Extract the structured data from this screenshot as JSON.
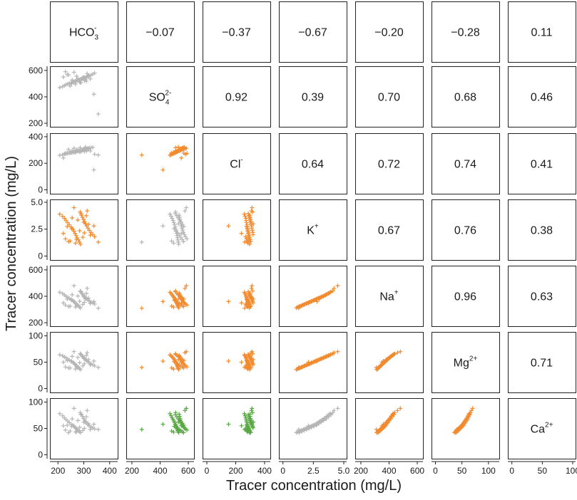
{
  "chart_data": {
    "type": "scatter",
    "xlabel": "Tracer concentration (mg/L)",
    "ylabel": "Tracer concentration (mg/L)",
    "variables": [
      {
        "key": "HCO3",
        "label": "HCO",
        "sub": "3",
        "sup": "-",
        "range": [
          180,
          420
        ],
        "ticks": [
          200,
          300,
          400
        ],
        "tick_labels": [
          "200",
          "300",
          "400"
        ]
      },
      {
        "key": "SO4",
        "label": "SO",
        "sub": "4",
        "sup": "2-",
        "range": [
          180,
          620
        ],
        "ticks": [
          200,
          400,
          600
        ],
        "tick_labels": [
          "200",
          "400",
          "600"
        ]
      },
      {
        "key": "Cl",
        "label": "Cl",
        "sub": "",
        "sup": "-",
        "range": [
          -10,
          420
        ],
        "ticks": [
          0,
          200,
          400
        ],
        "tick_labels": [
          "0",
          "200",
          "400"
        ]
      },
      {
        "key": "K",
        "label": "K",
        "sub": "",
        "sup": "+",
        "range": [
          -0.1,
          5.0
        ],
        "ticks": [
          0,
          2.5,
          5.0
        ],
        "tick_labels": [
          "0",
          "2.5",
          "5.0"
        ]
      },
      {
        "key": "Na",
        "label": "Na",
        "sub": "",
        "sup": "+",
        "range": [
          180,
          620
        ],
        "ticks": [
          200,
          400,
          600
        ],
        "tick_labels": [
          "200",
          "400",
          "600"
        ]
      },
      {
        "key": "Mg",
        "label": "Mg",
        "sub": "",
        "sup": "2+",
        "range": [
          -2,
          115
        ],
        "ticks": [
          0,
          50,
          100
        ],
        "tick_labels": [
          "0",
          "50",
          "100"
        ]
      },
      {
        "key": "Ca",
        "label": "Ca",
        "sub": "",
        "sup": "2+",
        "range": [
          -2,
          100
        ],
        "ticks": [
          0,
          50,
          100
        ],
        "tick_labels": [
          "0",
          "50",
          "100"
        ]
      }
    ],
    "y_axes": [
      {
        "row": 1,
        "ticks": [
          200,
          400,
          600
        ],
        "tick_labels": [
          "200",
          "400",
          "600"
        ],
        "range": [
          195,
          610
        ]
      },
      {
        "row": 2,
        "ticks": [
          0,
          200,
          400
        ],
        "tick_labels": [
          "0",
          "200",
          "400"
        ],
        "range": [
          -8,
          405
        ]
      },
      {
        "row": 3,
        "ticks": [
          0,
          2.5,
          5.0
        ],
        "tick_labels": [
          "0",
          "2.5",
          "5.0"
        ],
        "range": [
          -0.1,
          5.0
        ]
      },
      {
        "row": 4,
        "ticks": [
          200,
          400,
          600
        ],
        "tick_labels": [
          "200",
          "400",
          "600"
        ],
        "range": [
          195,
          610
        ]
      },
      {
        "row": 5,
        "ticks": [
          0,
          50,
          100
        ],
        "tick_labels": [
          "0",
          "50",
          "100"
        ],
        "range": [
          -2,
          102
        ]
      },
      {
        "row": 6,
        "ticks": [
          0,
          50,
          100
        ],
        "tick_labels": [
          "0",
          "50",
          "100"
        ],
        "range": [
          -2,
          102
        ]
      }
    ],
    "correlations": [
      {
        "row": 0,
        "col": 1,
        "value": "−0.07"
      },
      {
        "row": 0,
        "col": 2,
        "value": "−0.37"
      },
      {
        "row": 0,
        "col": 3,
        "value": "−0.67"
      },
      {
        "row": 0,
        "col": 4,
        "value": "−0.20"
      },
      {
        "row": 0,
        "col": 5,
        "value": "−0.28"
      },
      {
        "row": 0,
        "col": 6,
        "value": "0.11"
      },
      {
        "row": 1,
        "col": 2,
        "value": "0.92"
      },
      {
        "row": 1,
        "col": 3,
        "value": "0.39"
      },
      {
        "row": 1,
        "col": 4,
        "value": "0.70"
      },
      {
        "row": 1,
        "col": 5,
        "value": "0.68"
      },
      {
        "row": 1,
        "col": 6,
        "value": "0.46"
      },
      {
        "row": 2,
        "col": 3,
        "value": "0.64"
      },
      {
        "row": 2,
        "col": 4,
        "value": "0.72"
      },
      {
        "row": 2,
        "col": 5,
        "value": "0.74"
      },
      {
        "row": 2,
        "col": 6,
        "value": "0.41"
      },
      {
        "row": 3,
        "col": 4,
        "value": "0.67"
      },
      {
        "row": 3,
        "col": 5,
        "value": "0.76"
      },
      {
        "row": 3,
        "col": 6,
        "value": "0.38"
      },
      {
        "row": 4,
        "col": 5,
        "value": "0.96"
      },
      {
        "row": 4,
        "col": 6,
        "value": "0.63"
      },
      {
        "row": 5,
        "col": 6,
        "value": "0.71"
      }
    ],
    "point_colors": {
      "gray": "#b5b5b5",
      "orange": "#f28a2e",
      "green": "#58a843"
    },
    "scatter_colors": [
      {
        "row": 1,
        "col": 0,
        "color": "gray"
      },
      {
        "row": 2,
        "col": 0,
        "color": "gray"
      },
      {
        "row": 2,
        "col": 1,
        "color": "orange"
      },
      {
        "row": 3,
        "col": 0,
        "color": "orange"
      },
      {
        "row": 3,
        "col": 1,
        "color": "gray"
      },
      {
        "row": 3,
        "col": 2,
        "color": "orange"
      },
      {
        "row": 4,
        "col": 0,
        "color": "gray"
      },
      {
        "row": 4,
        "col": 1,
        "color": "orange"
      },
      {
        "row": 4,
        "col": 2,
        "color": "orange"
      },
      {
        "row": 4,
        "col": 3,
        "color": "orange"
      },
      {
        "row": 5,
        "col": 0,
        "color": "gray"
      },
      {
        "row": 5,
        "col": 1,
        "color": "orange"
      },
      {
        "row": 5,
        "col": 2,
        "color": "orange"
      },
      {
        "row": 5,
        "col": 3,
        "color": "orange"
      },
      {
        "row": 5,
        "col": 4,
        "color": "orange"
      },
      {
        "row": 6,
        "col": 0,
        "color": "gray"
      },
      {
        "row": 6,
        "col": 1,
        "color": "green"
      },
      {
        "row": 6,
        "col": 2,
        "color": "green"
      },
      {
        "row": 6,
        "col": 3,
        "color": "gray"
      },
      {
        "row": 6,
        "col": 4,
        "color": "orange"
      },
      {
        "row": 6,
        "col": 5,
        "color": "orange"
      }
    ],
    "samples": {
      "HCO3": [
        207,
        218,
        225,
        231,
        238,
        244,
        251,
        258,
        262,
        266,
        270,
        274,
        279,
        283,
        287,
        291,
        295,
        299,
        303,
        307,
        311,
        316,
        321,
        328,
        335,
        342,
        229,
        247,
        268,
        289,
        310,
        255,
        277,
        300,
        318,
        236,
        253,
        284,
        302,
        325,
        296,
        272,
        241,
        313,
        262,
        286,
        306,
        221,
        339,
        356
      ],
      "SO4": [
        470,
        478,
        485,
        492,
        498,
        503,
        507,
        511,
        514,
        517,
        520,
        523,
        526,
        529,
        532,
        535,
        538,
        541,
        544,
        547,
        551,
        555,
        560,
        565,
        572,
        580,
        590,
        482,
        496,
        508,
        518,
        528,
        538,
        548,
        558,
        568,
        500,
        512,
        524,
        536,
        546,
        556,
        566,
        576,
        586,
        510,
        530,
        550,
        420,
        270
      ],
      "Cl": [
        260,
        265,
        270,
        272,
        275,
        278,
        280,
        282,
        284,
        286,
        288,
        290,
        292,
        294,
        296,
        298,
        300,
        302,
        305,
        308,
        310,
        312,
        315,
        318,
        320,
        268,
        274,
        279,
        283,
        287,
        291,
        295,
        299,
        303,
        307,
        276,
        281,
        285,
        289,
        293,
        297,
        301,
        304,
        309,
        313,
        317,
        322,
        240,
        150,
        262
      ],
      "K": [
        3.9,
        3.7,
        3.5,
        3.3,
        3.1,
        2.9,
        2.7,
        2.5,
        2.3,
        2.1,
        1.9,
        1.7,
        1.5,
        1.3,
        1.1,
        3.8,
        3.6,
        3.4,
        3.2,
        3.0,
        2.8,
        2.6,
        2.4,
        2.2,
        2.0,
        1.8,
        1.6,
        1.4,
        1.2,
        3.95,
        3.75,
        3.55,
        3.35,
        3.15,
        2.95,
        2.75,
        2.55,
        2.35,
        2.15,
        1.95,
        1.75,
        1.55,
        1.35,
        4.2,
        4.5,
        4.1,
        3.0,
        2.1,
        2.8,
        1.3
      ],
      "Na": [
        430,
        420,
        410,
        400,
        392,
        384,
        376,
        368,
        360,
        352,
        344,
        336,
        328,
        320,
        312,
        425,
        415,
        405,
        397,
        389,
        381,
        373,
        365,
        357,
        349,
        341,
        333,
        325,
        318,
        435,
        422,
        412,
        402,
        394,
        386,
        378,
        370,
        362,
        354,
        346,
        338,
        330,
        322,
        460,
        480,
        440,
        380,
        350,
        360,
        310
      ],
      "Mg": [
        64,
        62,
        60,
        58,
        56,
        54,
        52,
        50,
        48,
        46,
        44,
        42,
        40,
        38,
        36,
        63,
        61,
        59,
        57,
        55,
        53,
        51,
        49,
        47,
        45,
        43,
        41,
        39,
        37,
        65,
        63,
        61,
        59,
        57,
        55,
        53,
        51,
        49,
        47,
        45,
        43,
        41,
        39,
        68,
        70,
        66,
        55,
        50,
        52,
        40
      ],
      "Ca": [
        78,
        74,
        70,
        67,
        64,
        61,
        58,
        56,
        54,
        52,
        50,
        48,
        46,
        44,
        42,
        77,
        73,
        69,
        66,
        63,
        60,
        57,
        55,
        53,
        51,
        49,
        47,
        45,
        43,
        76,
        72,
        68,
        65,
        62,
        59,
        56,
        54,
        52,
        50,
        48,
        46,
        44,
        42,
        84,
        88,
        80,
        62,
        55,
        58,
        48
      ]
    }
  }
}
